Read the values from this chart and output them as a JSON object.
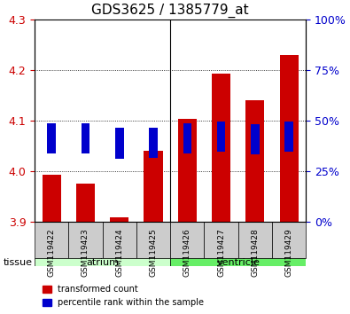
{
  "title": "GDS3625 / 1385779_at",
  "samples": [
    "GSM119422",
    "GSM119423",
    "GSM119424",
    "GSM119425",
    "GSM119426",
    "GSM119427",
    "GSM119428",
    "GSM119429"
  ],
  "red_bottom": [
    3.9,
    3.9,
    3.9,
    3.9,
    3.9,
    3.9,
    3.9,
    3.9
  ],
  "red_top": [
    3.993,
    3.975,
    3.908,
    4.04,
    4.103,
    4.192,
    4.14,
    4.23
  ],
  "blue_values": [
    4.065,
    4.065,
    4.055,
    4.056,
    4.065,
    4.068,
    4.063,
    4.068
  ],
  "ylim": [
    3.9,
    4.3
  ],
  "yticks_left": [
    3.9,
    4.0,
    4.1,
    4.2,
    4.3
  ],
  "yticks_right": [
    0,
    25,
    50,
    75,
    100
  ],
  "ytick_labels_right": [
    "0%",
    "25%",
    "50%",
    "75%",
    "100%"
  ],
  "ylabel_left_color": "#cc0000",
  "ylabel_right_color": "#0000cc",
  "bar_width": 0.55,
  "red_color": "#cc0000",
  "blue_color": "#0000cc",
  "grid_color": "#000000",
  "tissue_groups": [
    {
      "label": "atrium",
      "start": 0,
      "end": 4,
      "color": "#ccffcc"
    },
    {
      "label": "ventricle",
      "start": 4,
      "end": 8,
      "color": "#66ee66"
    }
  ],
  "tissue_label": "tissue",
  "bg_color": "#ffffff",
  "plot_bg": "#ffffff",
  "tick_bg": "#dddddd"
}
